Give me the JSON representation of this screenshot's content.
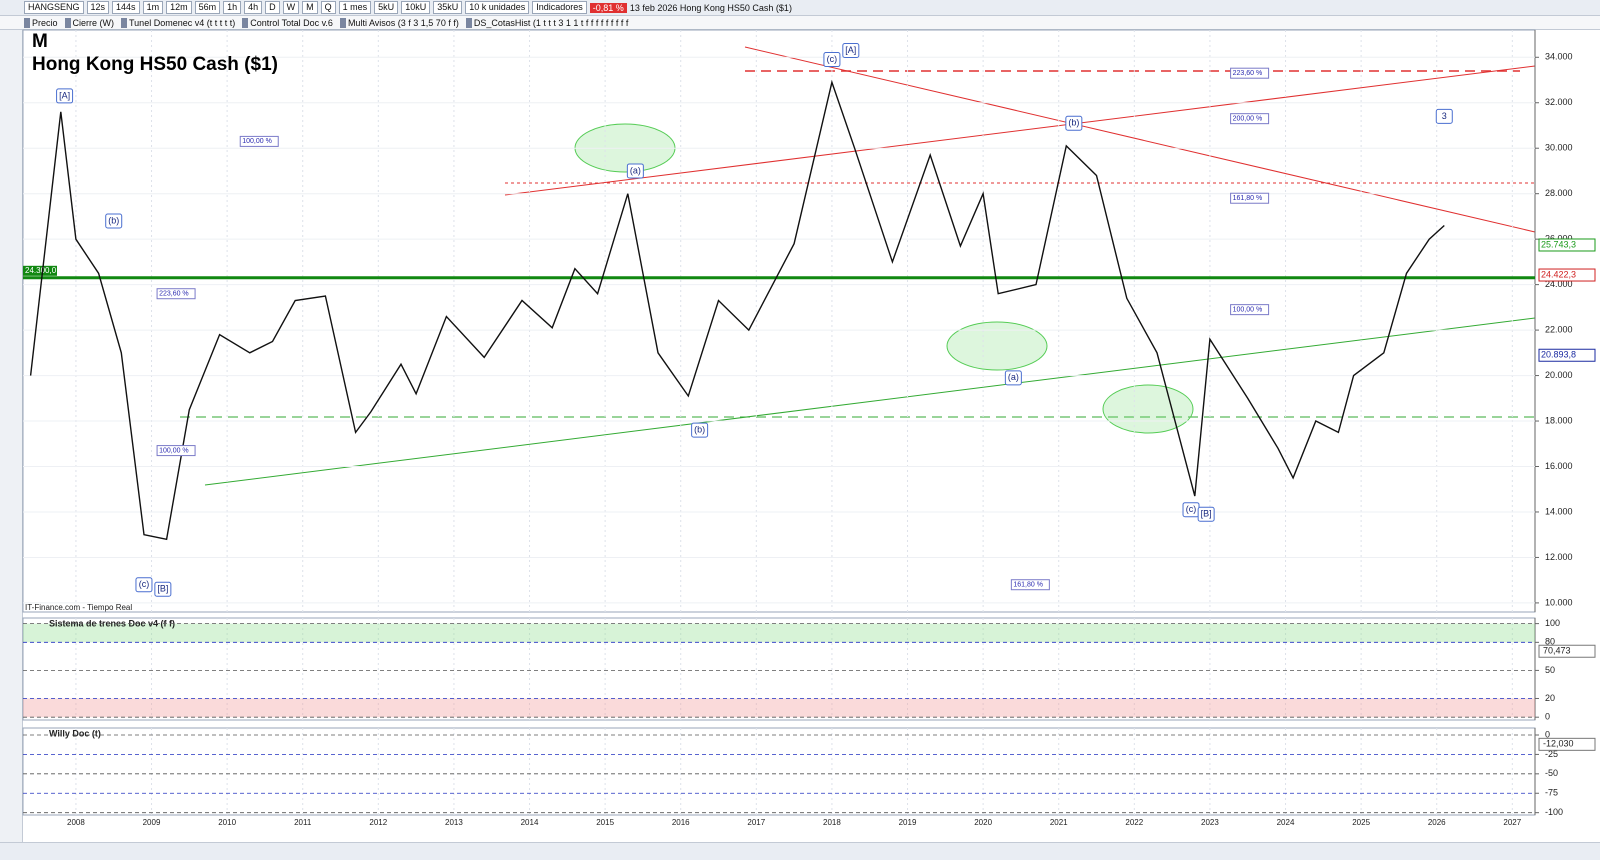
{
  "toolbar": {
    "symbol": "HANGSENG",
    "buttons": [
      "12s",
      "144s",
      "1m",
      "12m",
      "56m",
      "1h",
      "4h",
      "D",
      "W",
      "M",
      "Q",
      "1 mes",
      "5kU",
      "10kU",
      "35kU",
      "10 k unidades",
      "Indicadores"
    ],
    "change": "-0,81 %",
    "info": "13 feb 2026  Hong Kong HS50 Cash ($1)"
  },
  "indicators_bar": [
    "Precio",
    "Cierre (W)",
    "Tunel Domenec v4 (t t t t t)",
    "Control Total Doc v.6",
    "Multi Avisos (3 f 3 1,5 70 f f)",
    "DS_CotasHist (1 t t t 3 1 1 t f f f f f f f f f"
  ],
  "chart_data": [
    {
      "type": "line",
      "timeframe": "M",
      "title": "Hong Kong HS50 Cash ($1)",
      "source": "IT-Finance.com - Tiempo Real",
      "color": "#111111",
      "x": [
        2007.4,
        2007.8,
        2008.0,
        2008.3,
        2008.6,
        2008.9,
        2009.2,
        2009.5,
        2009.9,
        2010.3,
        2010.6,
        2010.9,
        2011.3,
        2011.7,
        2011.9,
        2012.3,
        2012.5,
        2012.9,
        2013.4,
        2013.9,
        2014.3,
        2014.6,
        2014.9,
        2015.3,
        2015.7,
        2016.1,
        2016.5,
        2016.9,
        2017.5,
        2018.0,
        2018.3,
        2018.8,
        2019.3,
        2019.7,
        2020.0,
        2020.2,
        2020.7,
        2021.1,
        2021.5,
        2021.9,
        2022.3,
        2022.8,
        2023.0,
        2023.5,
        2023.9,
        2024.1,
        2024.4,
        2024.7,
        2024.9,
        2025.3,
        2025.6,
        2025.9,
        2026.1
      ],
      "values": [
        20000,
        31600,
        26000,
        24500,
        21000,
        13000,
        12800,
        18500,
        21800,
        21000,
        21500,
        23300,
        23500,
        17500,
        18400,
        20500,
        19200,
        22600,
        20800,
        23300,
        22100,
        24700,
        23600,
        28000,
        21000,
        19100,
        23300,
        22000,
        25800,
        32900,
        30000,
        25000,
        29700,
        25700,
        28000,
        23600,
        24000,
        30100,
        28800,
        23400,
        21000,
        14700,
        21600,
        19000,
        16800,
        15500,
        18000,
        17500,
        20000,
        21000,
        24500,
        26000,
        26600
      ],
      "xlim": [
        2007.3,
        2027.3
      ],
      "xticks": [
        2008,
        2009,
        2010,
        2011,
        2012,
        2013,
        2014,
        2015,
        2016,
        2017,
        2018,
        2019,
        2020,
        2021,
        2022,
        2023,
        2024,
        2025,
        2026,
        2027
      ],
      "ylim": [
        9600,
        35200
      ],
      "yticks": [
        {
          "value": 10000,
          "label": "10.000"
        },
        {
          "value": 12000,
          "label": "12.000"
        },
        {
          "value": 14000,
          "label": "14.000"
        },
        {
          "value": 16000,
          "label": "16.000"
        },
        {
          "value": 18000,
          "label": "18.000"
        },
        {
          "value": 20000,
          "label": "20.000"
        },
        {
          "value": 22000,
          "label": "22.000"
        },
        {
          "value": 24000,
          "label": "24.000"
        },
        {
          "value": 26000,
          "label": "26.000"
        },
        {
          "value": 28000,
          "label": "28.000"
        },
        {
          "value": 30000,
          "label": "30.000"
        },
        {
          "value": 32000,
          "label": "32.000"
        },
        {
          "value": 34000,
          "label": "34.000"
        }
      ],
      "reference_lines": [
        {
          "value": 24300,
          "label": "24.300,0",
          "color": "#118811"
        }
      ],
      "price_labels": [
        {
          "value": 25743.3,
          "label": "25.743,3",
          "color": "#1a9a1a"
        },
        {
          "value": 24422.3,
          "label": "24.422,3",
          "color": "#d02020"
        },
        {
          "value": 20893.8,
          "label": "20.893,8",
          "color": "#1a2aa0"
        }
      ],
      "annotations": [
        {
          "text": "[A]",
          "x": 2007.85,
          "y": 32300
        },
        {
          "text": "(b)",
          "x": 2008.5,
          "y": 26800
        },
        {
          "text": "(c)",
          "x": 2008.9,
          "y": 10800
        },
        {
          "text": "[B]",
          "x": 2009.15,
          "y": 10600
        },
        {
          "text": "(a)",
          "x": 2015.4,
          "y": 29000
        },
        {
          "text": "(b)",
          "x": 2016.25,
          "y": 17600
        },
        {
          "text": "(c)",
          "x": 2018.0,
          "y": 33900
        },
        {
          "text": "[A]",
          "x": 2018.25,
          "y": 34300
        },
        {
          "text": "(a)",
          "x": 2020.4,
          "y": 19900
        },
        {
          "text": "(b)",
          "x": 2021.2,
          "y": 31100
        },
        {
          "text": "(c)",
          "x": 2022.75,
          "y": 14100
        },
        {
          "text": "[B]",
          "x": 2022.95,
          "y": 13900
        },
        {
          "text": "3",
          "x": 2026.1,
          "y": 31400
        }
      ],
      "fib_labels": [
        {
          "text": "223,60 %",
          "x": 2009.1,
          "y": 23600
        },
        {
          "text": "100,00 %",
          "x": 2009.1,
          "y": 16700
        },
        {
          "text": "100,00 %",
          "x": 2010.2,
          "y": 30300
        },
        {
          "text": "161,80 %",
          "x": 2020.4,
          "y": 10800
        },
        {
          "text": "223,60 %",
          "x": 2023.3,
          "y": 33300
        },
        {
          "text": "161,80 %",
          "x": 2023.3,
          "y": 27800
        },
        {
          "text": "200,00 %",
          "x": 2023.3,
          "y": 31300
        },
        {
          "text": "100,00 %",
          "x": 2023.3,
          "y": 22900
        }
      ]
    },
    {
      "type": "indicator",
      "title": "Sistema de trenes Doc v4 (f f)",
      "ylim": [
        -3,
        106
      ],
      "yticks": [
        0,
        20,
        50,
        80,
        100
      ],
      "value_label": {
        "value": 70.473,
        "label": "70,473"
      }
    },
    {
      "type": "indicator",
      "title": "Willy Doc (t)",
      "ylim": [
        -103,
        9
      ],
      "yticks": [
        0,
        -25,
        -50,
        -75,
        -100
      ],
      "value_label": {
        "value": -12.03,
        "label": "-12,030"
      }
    }
  ]
}
